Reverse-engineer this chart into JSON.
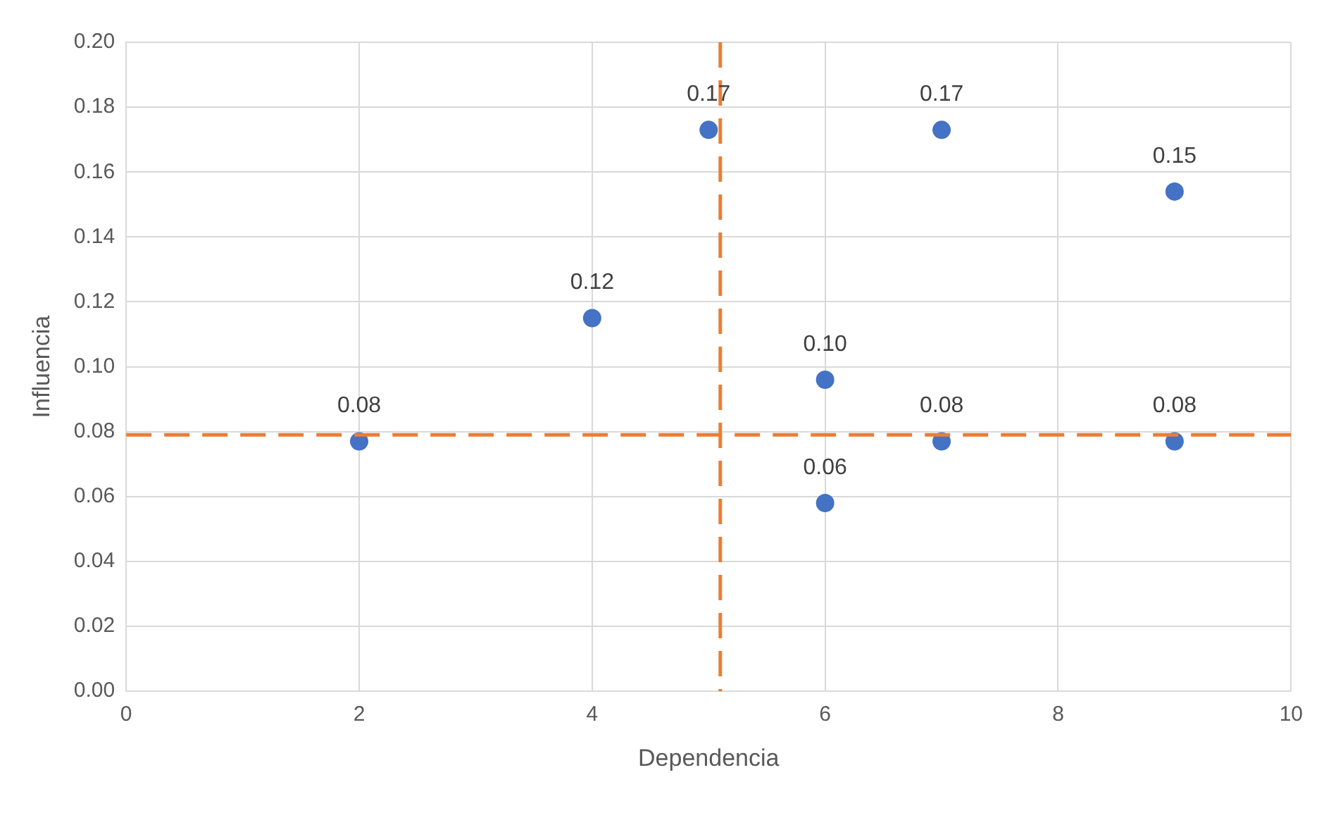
{
  "chart_data": {
    "type": "scatter",
    "xlabel": "Dependencia",
    "ylabel": "Influencia",
    "series": [
      {
        "color": "#4472c4",
        "x": [
          2,
          4,
          5,
          6,
          6,
          7,
          7,
          9,
          9
        ],
        "values": [
          0.077,
          0.115,
          0.173,
          0.096,
          0.058,
          0.173,
          0.077,
          0.154,
          0.077
        ],
        "value_labels": [
          "0.08",
          "0.12",
          "0.17",
          "0.10",
          "0.06",
          "0.17",
          "0.08",
          "0.15",
          "0.08"
        ]
      }
    ],
    "xlim": [
      0,
      10
    ],
    "xticks": [
      0,
      2,
      4,
      6,
      8,
      10
    ],
    "ylim": [
      0,
      0.2
    ],
    "yticks": [
      {
        "value": 0,
        "label": "0.00"
      },
      {
        "value": 0.02,
        "label": "0.02"
      },
      {
        "value": 0.04,
        "label": "0.04"
      },
      {
        "value": 0.06,
        "label": "0.06"
      },
      {
        "value": 0.08,
        "label": "0.08"
      },
      {
        "value": 0.1,
        "label": "0.10"
      },
      {
        "value": 0.12,
        "label": "0.12"
      },
      {
        "value": 0.14,
        "label": "0.14"
      },
      {
        "value": 0.16,
        "label": "0.16"
      },
      {
        "value": 0.18,
        "label": "0.18"
      },
      {
        "value": 0.2,
        "label": "0.20"
      }
    ],
    "ref_lines": [
      {
        "axis": "x",
        "value": 5.1,
        "color": "#ed7d31",
        "line_style": "dashed"
      },
      {
        "axis": "y",
        "value": 0.079,
        "color": "#ed7d31",
        "line_style": "dashed"
      }
    ],
    "grid": true,
    "legend": false,
    "marker": "circle"
  }
}
